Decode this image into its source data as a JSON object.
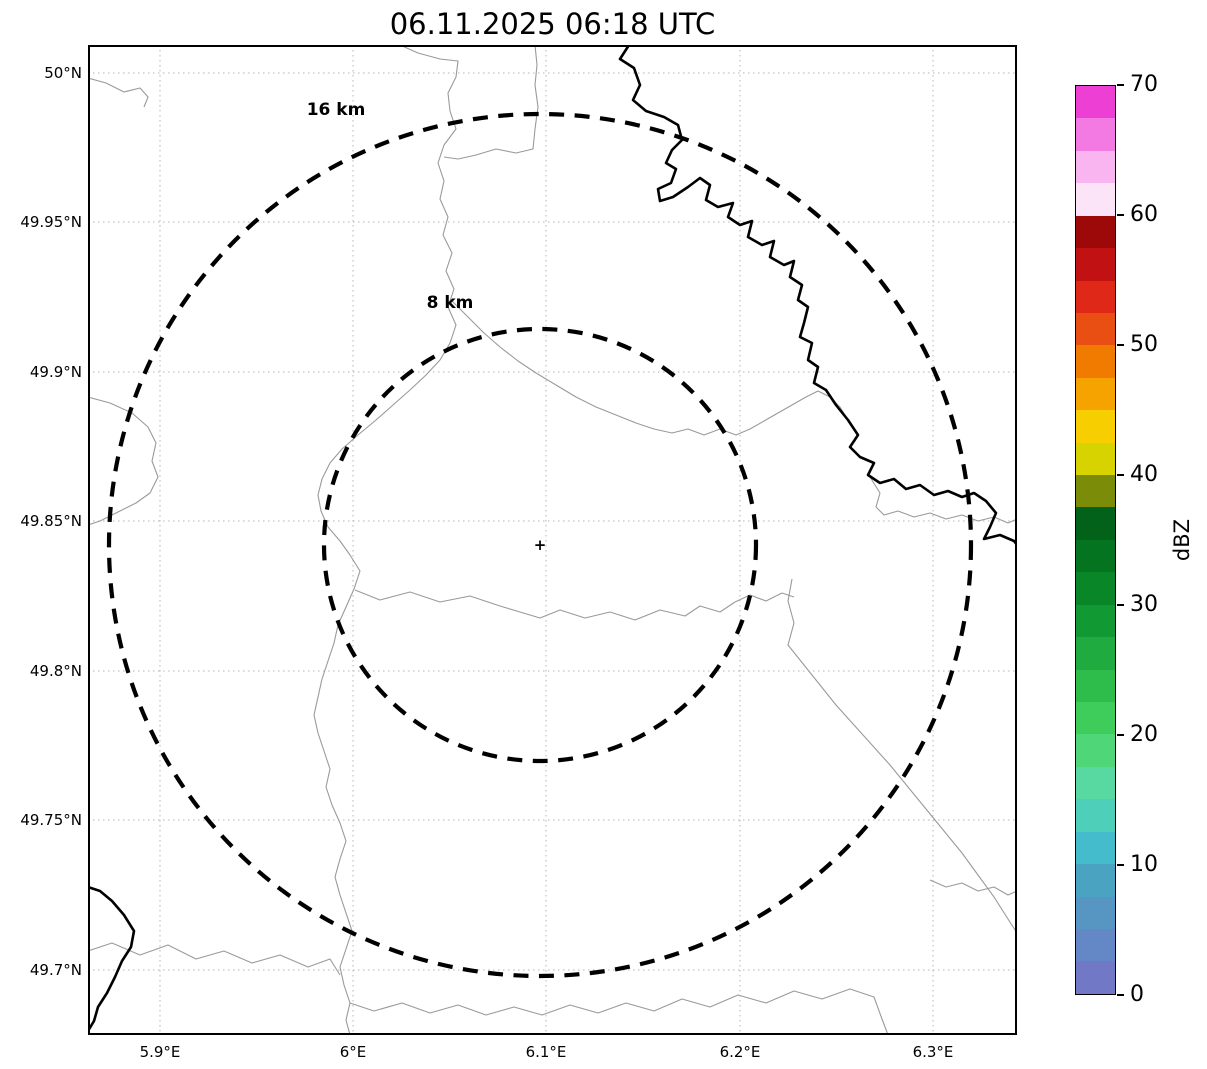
{
  "title": "06.11.2025 06:18 UTC",
  "map": {
    "center_marker": "+",
    "rings": [
      {
        "label": "16 km"
      },
      {
        "label": "8 km"
      }
    ],
    "x_tick_labels": [
      "5.9°E",
      "6°E",
      "6.1°E",
      "6.2°E",
      "6.3°E"
    ],
    "y_tick_labels": [
      "50°N",
      "49.95°N",
      "49.9°N",
      "49.85°N",
      "49.8°N",
      "49.75°N",
      "49.7°N"
    ]
  },
  "colorbar": {
    "label": "dBZ",
    "tick_labels": [
      "70",
      "60",
      "50",
      "40",
      "30",
      "20",
      "10",
      "0"
    ],
    "segment_colors_bottom_to_top": [
      "#7179c7",
      "#6487c5",
      "#5795c3",
      "#4aa3c1",
      "#44bccb",
      "#4ecfba",
      "#58d9a2",
      "#4fd678",
      "#3ecd5a",
      "#2ebd4b",
      "#1fab3f",
      "#119933",
      "#088628",
      "#047420",
      "#026219",
      "#7a8c08",
      "#d6d300",
      "#f7cf00",
      "#f6a300",
      "#f07b00",
      "#e94e12",
      "#df2818",
      "#c11113",
      "#9d0808",
      "#fce4f8",
      "#f8b5ef",
      "#f37ae3",
      "#ee3fd4"
    ]
  }
}
